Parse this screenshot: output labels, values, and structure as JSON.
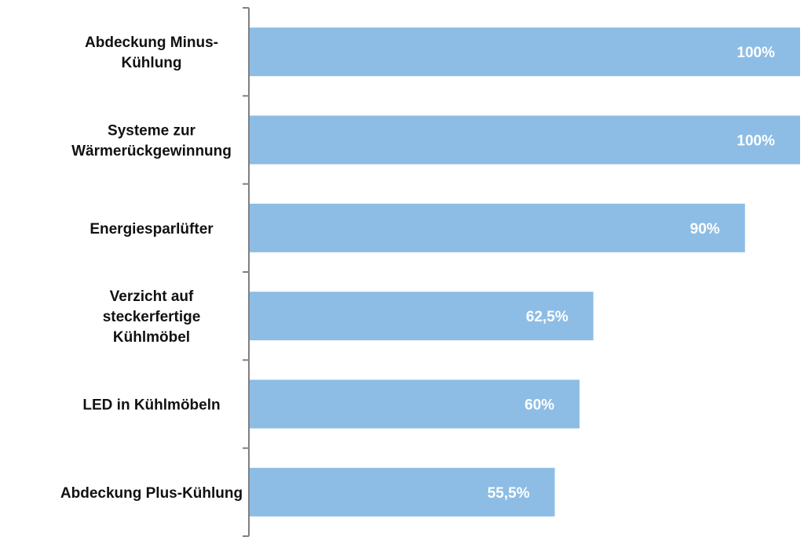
{
  "chart_data": {
    "type": "bar",
    "orientation": "horizontal",
    "categories": [
      "Abdeckung Minus-Kühlung",
      "Systeme zur Wärmerückgewinnung",
      "Energiesparlüfter",
      "Verzicht auf steckerfertige Kühlmöbel",
      "LED in Kühlmöbeln",
      "Abdeckung Plus-Kühlung"
    ],
    "category_lines": [
      [
        "Abdeckung Minus-",
        "Kühlung"
      ],
      [
        "Systeme zur",
        "Wärmerückgewinnung"
      ],
      [
        "Energiesparlüfter"
      ],
      [
        "Verzicht auf",
        "steckerfertige",
        "Kühlmöbel"
      ],
      [
        "LED in Kühlmöbeln"
      ],
      [
        "Abdeckung Plus-Kühlung"
      ]
    ],
    "values": [
      100,
      100,
      90,
      62.5,
      60,
      55.5
    ],
    "value_labels": [
      "100%",
      "100%",
      "90%",
      "62,5%",
      "60%",
      "55,5%"
    ],
    "xlim": [
      0,
      100
    ],
    "title": "",
    "xlabel": "",
    "ylabel": "",
    "grid": false,
    "legend": "none",
    "colors": {
      "bar": "#8DBDE5",
      "axis": "#808080",
      "label_text": "#111111",
      "value_text": "#ffffff"
    }
  }
}
